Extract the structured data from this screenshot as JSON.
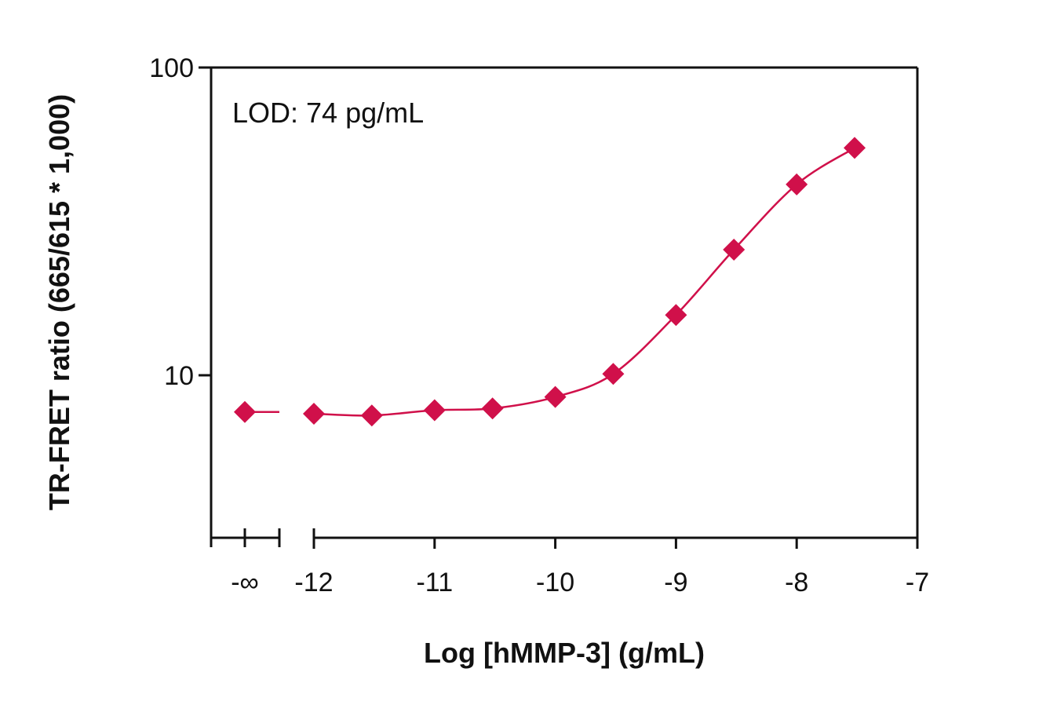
{
  "chart_data": {
    "type": "scatter",
    "title": "",
    "xlabel": "Log [hMMP-3] (g/mL)",
    "ylabel": "TR-FRET ratio (665/615 * 1,000)",
    "annotation": "LOD: 74 pg/mL",
    "x_scale": "linear",
    "y_scale": "log",
    "xlim": [
      -12,
      -7
    ],
    "ylim": [
      4.5,
      100
    ],
    "x_ticks": [
      -12,
      -11,
      -10,
      -9,
      -8,
      -7
    ],
    "x_tick_labels": [
      "-12",
      "-11",
      "-10",
      "-9",
      "-8",
      "-7"
    ],
    "x_break_label": "-∞",
    "y_ticks": [
      10,
      100
    ],
    "y_tick_labels": [
      "10",
      "100"
    ],
    "grid": false,
    "legend": "none",
    "series": [
      {
        "marker": "diamond",
        "color": "#d0104a",
        "zero_point": {
          "x_label": "-∞",
          "y": 7.6
        },
        "x": [
          -12,
          -11.52,
          -11,
          -10.52,
          -10,
          -9.52,
          -9,
          -8.52,
          -8,
          -7.52
        ],
        "y": [
          7.5,
          7.4,
          7.7,
          7.8,
          8.5,
          10.1,
          15.7,
          25.6,
          41.7,
          54.8
        ],
        "fit": "4PL sigmoid"
      }
    ]
  }
}
